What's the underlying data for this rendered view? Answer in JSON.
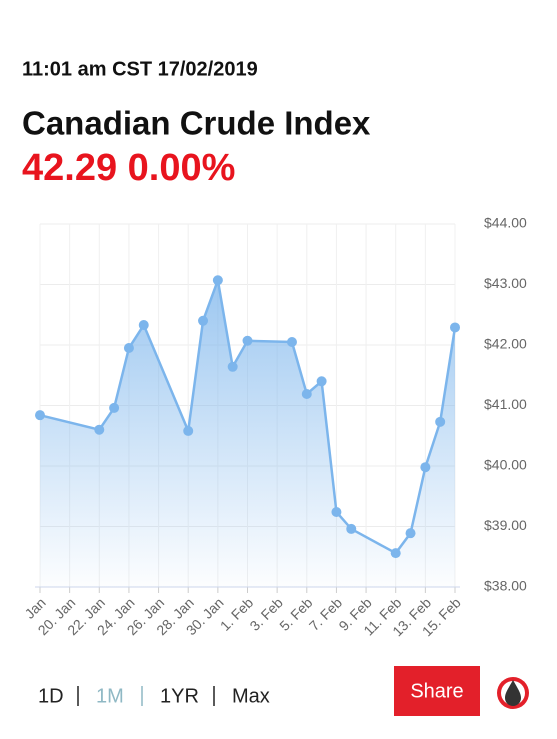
{
  "timestamp": "11:01 am CST 17/02/2019",
  "chart_data": {
    "type": "area",
    "title": "Canadian Crude Index",
    "subtitle": "42.29 0.00%",
    "x": [
      "2019-01-18",
      "2019-01-22",
      "2019-01-23",
      "2019-01-24",
      "2019-01-25",
      "2019-01-28",
      "2019-01-29",
      "2019-01-30",
      "2019-01-31",
      "2019-02-01",
      "2019-02-04",
      "2019-02-05",
      "2019-02-06",
      "2019-02-07",
      "2019-02-08",
      "2019-02-11",
      "2019-02-12",
      "2019-02-13",
      "2019-02-14",
      "2019-02-15"
    ],
    "values": [
      40.84,
      40.6,
      40.96,
      41.95,
      42.33,
      40.58,
      42.4,
      43.07,
      41.64,
      42.07,
      42.05,
      41.19,
      41.4,
      39.24,
      38.96,
      38.56,
      38.89,
      39.98,
      40.73,
      42.29
    ],
    "color": "#7cb5ec",
    "xlim": [
      "2019-01-18",
      "2019-02-15"
    ],
    "xticks": [
      {
        "value": "2019-01-18",
        "label": "Jan"
      },
      {
        "value": "2019-01-20",
        "label": "20. Jan"
      },
      {
        "value": "2019-01-22",
        "label": "22. Jan"
      },
      {
        "value": "2019-01-24",
        "label": "24. Jan"
      },
      {
        "value": "2019-01-26",
        "label": "26. Jan"
      },
      {
        "value": "2019-01-28",
        "label": "28. Jan"
      },
      {
        "value": "2019-01-30",
        "label": "30. Jan"
      },
      {
        "value": "2019-02-01",
        "label": "1. Feb"
      },
      {
        "value": "2019-02-03",
        "label": "3. Feb"
      },
      {
        "value": "2019-02-05",
        "label": "5. Feb"
      },
      {
        "value": "2019-02-07",
        "label": "7. Feb"
      },
      {
        "value": "2019-02-09",
        "label": "9. Feb"
      },
      {
        "value": "2019-02-11",
        "label": "11. Feb"
      },
      {
        "value": "2019-02-13",
        "label": "13. Feb"
      },
      {
        "value": "2019-02-15",
        "label": "15. Feb"
      }
    ],
    "ylim": [
      38,
      44
    ],
    "yticks": [
      {
        "value": 38,
        "label": "$38.00"
      },
      {
        "value": 39,
        "label": "$39.00"
      },
      {
        "value": 40,
        "label": "$40.00"
      },
      {
        "value": 41,
        "label": "$41.00"
      },
      {
        "value": 42,
        "label": "$42.00"
      },
      {
        "value": 43,
        "label": "$43.00"
      },
      {
        "value": 44,
        "label": "$44.00"
      }
    ],
    "grid": true
  },
  "ranges": [
    "1D",
    "1M",
    "1YR",
    "Max"
  ],
  "share": "Share"
}
